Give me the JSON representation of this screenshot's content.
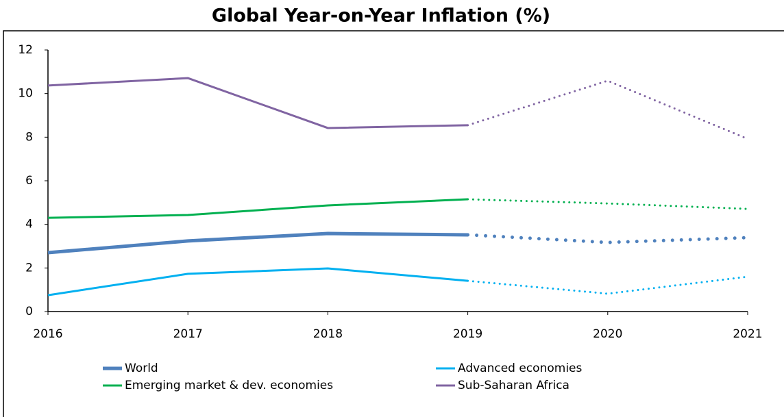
{
  "chart_data": {
    "type": "line",
    "title": "Global Year-on-Year Inflation (%)",
    "x": [
      2016,
      2017,
      2018,
      2019,
      2020,
      2021
    ],
    "xlim": [
      2016,
      2021
    ],
    "xticks": [
      2016,
      2017,
      2018,
      2019,
      2020,
      2021
    ],
    "ylim": [
      0,
      12
    ],
    "yticks": [
      0,
      2,
      4,
      6,
      8,
      10,
      12
    ],
    "grid": false,
    "dotted_from": 2019,
    "legend": "bottom",
    "series": [
      {
        "name": "World",
        "color": "#4f81bd",
        "line_width": 5,
        "values": [
          2.7,
          3.24,
          3.58,
          3.52,
          3.17,
          3.39
        ]
      },
      {
        "name": "Advanced economies",
        "color": "#00b0f0",
        "line_width": 3,
        "values": [
          0.75,
          1.73,
          1.98,
          1.41,
          0.82,
          1.6
        ]
      },
      {
        "name": "Emerging market & dev. economies",
        "color": "#00b050",
        "line_width": 3,
        "values": [
          4.3,
          4.43,
          4.87,
          5.15,
          4.96,
          4.71
        ]
      },
      {
        "name": "Sub-Saharan Africa",
        "color": "#8064a2",
        "line_width": 3,
        "values": [
          10.37,
          10.71,
          8.42,
          8.55,
          10.59,
          7.92
        ]
      }
    ]
  }
}
